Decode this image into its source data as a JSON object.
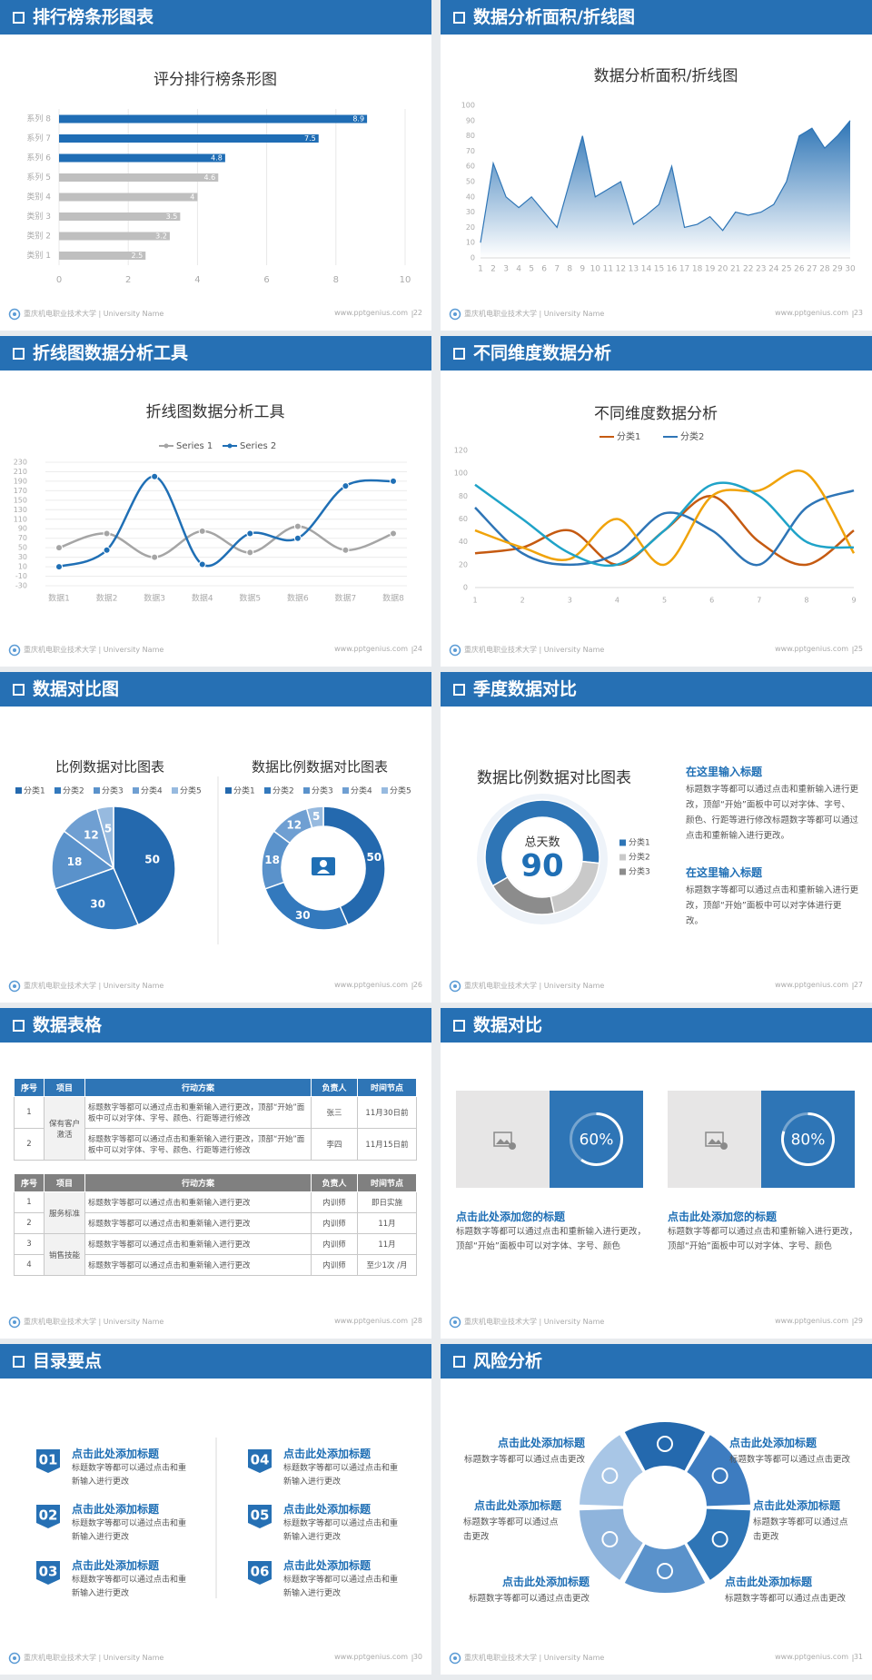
{
  "footer": {
    "org": "重庆机电职业技术大学 | University Name",
    "site": "www.pptgenius.com"
  },
  "slides": [
    {
      "header": "排行榜条形图表",
      "page": 22,
      "chart_data": {
        "type": "bar",
        "orientation": "horizontal",
        "title": "评分排行榜条形图",
        "categories": [
          "系列 8",
          "系列 7",
          "系列 6",
          "系列 5",
          "类别 4",
          "类别 3",
          "类别 2",
          "类别 1"
        ],
        "values": [
          8.9,
          7.5,
          4.8,
          4.6,
          4,
          3.5,
          3.2,
          2.5
        ],
        "colors": [
          "#1f6db5",
          "#1f6db5",
          "#1f6db5",
          "#bfbfbf",
          "#bfbfbf",
          "#bfbfbf",
          "#bfbfbf",
          "#bfbfbf"
        ],
        "xlim": [
          0,
          10
        ],
        "xticks": [
          0,
          2,
          4,
          6,
          8,
          10
        ],
        "grid": true
      }
    },
    {
      "header": "数据分析面积/折线图",
      "page": 23,
      "chart_data": {
        "type": "area",
        "title": "数据分析面积/折线图",
        "x": [
          1,
          2,
          3,
          4,
          5,
          6,
          7,
          8,
          9,
          10,
          11,
          12,
          13,
          14,
          15,
          16,
          17,
          18,
          19,
          20,
          21,
          22,
          23,
          24,
          25,
          26,
          27,
          28,
          29,
          30
        ],
        "values": [
          10,
          62,
          40,
          33,
          40,
          30,
          20,
          50,
          80,
          40,
          45,
          50,
          22,
          28,
          35,
          60,
          20,
          22,
          27,
          18,
          30,
          28,
          30,
          35,
          50,
          80,
          85,
          72,
          80,
          90
        ],
        "color": "#2e75b6",
        "xlim": [
          1,
          30
        ],
        "ylim": [
          0,
          100
        ],
        "yticks": [
          0,
          10,
          20,
          30,
          40,
          50,
          60,
          70,
          80,
          90,
          100
        ]
      }
    },
    {
      "header": "折线图数据分析工具",
      "page": 24,
      "chart_data": {
        "type": "line",
        "smooth": true,
        "markers": true,
        "title": "折线图数据分析工具",
        "categories": [
          "数据1",
          "数据2",
          "数据3",
          "数据4",
          "数据5",
          "数据6",
          "数据7",
          "数据8"
        ],
        "series": [
          {
            "name": "Series 1",
            "color": "#a5a5a5",
            "values": [
              50,
              80,
              30,
              85,
              40,
              95,
              45,
              80
            ]
          },
          {
            "name": "Series 2",
            "color": "#1f6fb5",
            "values": [
              10,
              45,
              200,
              15,
              80,
              70,
              180,
              190
            ]
          }
        ],
        "ylim": [
          -30,
          230
        ],
        "yticks": [
          -30,
          -10,
          10,
          30,
          50,
          70,
          90,
          110,
          130,
          150,
          170,
          190,
          210,
          230
        ],
        "grid": true,
        "legend": "top"
      }
    },
    {
      "header": "不同维度数据分析",
      "page": 25,
      "chart_data": {
        "type": "line",
        "smooth": true,
        "markers": false,
        "title": "不同维度数据分析",
        "x": [
          1,
          2,
          3,
          4,
          5,
          6,
          7,
          8,
          9
        ],
        "xlim": [
          1,
          9
        ],
        "series": [
          {
            "name": "分类1",
            "color": "#c55a11",
            "values": [
              30,
              35,
              50,
              20,
              50,
              80,
              40,
              20,
              50
            ]
          },
          {
            "name": "分类2",
            "color": "#2e75b6",
            "values": [
              70,
              30,
              20,
              30,
              65,
              50,
              20,
              70,
              85
            ]
          },
          {
            "color": "#f0a30a",
            "values": [
              50,
              35,
              25,
              60,
              20,
              80,
              85,
              100,
              30
            ]
          },
          {
            "color": "#1fa3c8",
            "values": [
              90,
              60,
              30,
              20,
              50,
              90,
              80,
              40,
              35
            ]
          }
        ],
        "ylim": [
          0,
          120
        ],
        "yticks": [
          0,
          20,
          40,
          60,
          80,
          100,
          120
        ],
        "grid": false,
        "legend": "top"
      }
    },
    {
      "header": "数据对比图",
      "page": 26,
      "chart_data": [
        {
          "type": "pie",
          "title": "比例数据对比图表",
          "categories": [
            "分类1",
            "分类2",
            "分类3",
            "分类4",
            "分类5"
          ],
          "values": [
            50,
            30,
            18,
            12,
            5
          ],
          "colors": [
            "#2469ae",
            "#3379bd",
            "#5a92cb",
            "#6f9fd2",
            "#97badf"
          ],
          "legend": "top"
        },
        {
          "type": "doughnut",
          "title": "数据比例数据对比图表",
          "categories": [
            "分类1",
            "分类2",
            "分类3",
            "分类4",
            "分类5"
          ],
          "values": [
            50,
            30,
            18,
            12,
            5
          ],
          "colors": [
            "#2469ae",
            "#3379bd",
            "#5a92cb",
            "#6f9fd2",
            "#97badf"
          ],
          "legend": "top"
        }
      ]
    },
    {
      "header": "季度数据对比",
      "page": 27,
      "chart_data": {
        "type": "doughnut",
        "title": "数据比例数据对比图表",
        "center_label": "总天数",
        "center_value": 90,
        "categories": [
          "分类1",
          "分类2",
          "分类3"
        ],
        "values": [
          60,
          20,
          20
        ],
        "colors": [
          "#2e75b6",
          "#c9c9c9",
          "#8c8c8c"
        ],
        "legend": "right"
      },
      "blocks": [
        {
          "title": "在这里输入标题",
          "body": "标题数字等都可以通过点击和重新输入进行更改，顶部“开始”面板中可以对字体、字号、颜色、行距等进行修改标题数字等都可以通过点击和重新输入进行更改。"
        },
        {
          "title": "在这里输入标题",
          "body": "标题数字等都可以通过点击和重新输入进行更改，顶部“开始”面板中可以对字体进行更改。"
        }
      ]
    },
    {
      "header": "数据表格",
      "page": 28,
      "tables": [
        {
          "columns": [
            "序号",
            "项目",
            "行动方案",
            "负责人",
            "时间节点"
          ],
          "groups": [
            {
              "project": "保有客户激活",
              "rows": [
                [
                  "1",
                  "标题数字等都可以通过点击和重新输入进行更改，顶部“开始”面板中可以对字体、字号、颜色、行距等进行修改",
                  "张三",
                  "11月30日前"
                ],
                [
                  "2",
                  "标题数字等都可以通过点击和重新输入进行更改，顶部“开始”面板中可以对字体、字号、颜色、行距等进行修改",
                  "李四",
                  "11月15日前"
                ]
              ]
            }
          ]
        },
        {
          "columns": [
            "序号",
            "项目",
            "行动方案",
            "负责人",
            "时间节点"
          ],
          "groups": [
            {
              "project": "服务标准",
              "rows": [
                [
                  "1",
                  "标题数字等都可以通过点击和重新输入进行更改",
                  "内训师",
                  "即日实施"
                ],
                [
                  "2",
                  "标题数字等都可以通过点击和重新输入进行更改",
                  "内训师",
                  "11月"
                ]
              ]
            },
            {
              "project": "销售技能",
              "rows": [
                [
                  "3",
                  "标题数字等都可以通过点击和重新输入进行更改",
                  "内训师",
                  "11月"
                ],
                [
                  "4",
                  "标题数字等都可以通过点击和重新输入进行更改",
                  "内训师",
                  "至少1次 /月"
                ]
              ]
            }
          ]
        }
      ]
    },
    {
      "header": "数据对比",
      "page": 29,
      "cards": [
        {
          "value": 60,
          "value_label": "60%",
          "title": "点击此处添加您的标题",
          "body": "标题数字等都可以通过点击和重新输入进行更改，顶部“开始”面板中可以对字体、字号、颜色"
        },
        {
          "value": 80,
          "value_label": "80%",
          "title": "点击此处添加您的标题",
          "body": "标题数字等都可以通过点击和重新输入进行更改，顶部“开始”面板中可以对字体、字号、颜色"
        }
      ]
    },
    {
      "header": "目录要点",
      "page": 30,
      "items": [
        {
          "number": "01",
          "title": "点击此处添加标题",
          "body": "标题数字等都可以通过点击和重新输入进行更改"
        },
        {
          "number": "02",
          "title": "点击此处添加标题",
          "body": "标题数字等都可以通过点击和重新输入进行更改"
        },
        {
          "number": "03",
          "title": "点击此处添加标题",
          "body": "标题数字等都可以通过点击和重新输入进行更改"
        },
        {
          "number": "04",
          "title": "点击此处添加标题",
          "body": "标题数字等都可以通过点击和重新输入进行更改"
        },
        {
          "number": "05",
          "title": "点击此处添加标题",
          "body": "标题数字等都可以通过点击和重新输入进行更改"
        },
        {
          "number": "06",
          "title": "点击此处添加标题",
          "body": "标题数字等都可以通过点击和重新输入进行更改"
        }
      ]
    },
    {
      "header": "风险分析",
      "page": 31,
      "items": [
        {
          "title": "点击此处添加标题",
          "body": "标题数字等都可以通过点击更改"
        },
        {
          "title": "点击此处添加标题",
          "body": "标题数字等都可以通过点击更改"
        },
        {
          "title": "点击此处添加标题",
          "body": "标题数字等都可以通过点击更改"
        },
        {
          "title": "点击此处添加标题",
          "body": "标题数字等都可以通过点击更改"
        },
        {
          "title": "点击此处添加标题",
          "body": "标题数字等都可以通过点击更改"
        },
        {
          "title": "点击此处添加标题",
          "body": "标题数字等都可以通过点击更改"
        }
      ]
    }
  ]
}
